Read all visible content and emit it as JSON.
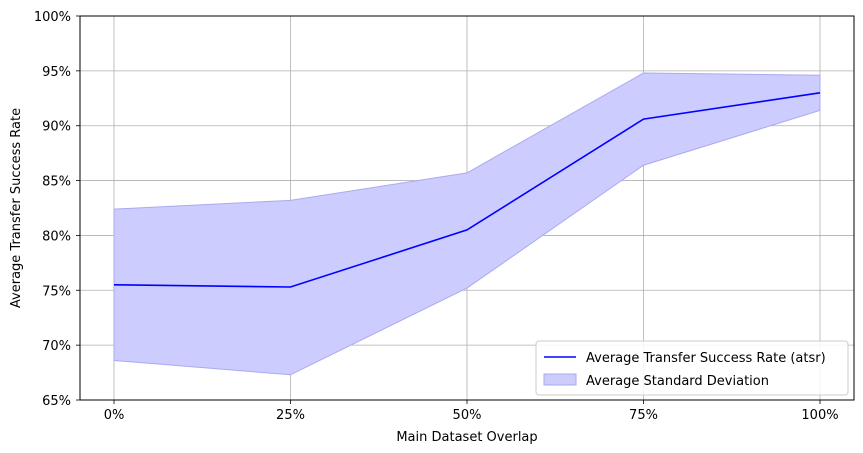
{
  "chart_data": {
    "type": "line",
    "title": "",
    "xlabel": "Main Dataset Overlap",
    "ylabel": "Average Transfer Success Rate",
    "x": [
      0,
      25,
      50,
      75,
      100
    ],
    "xtick_labels": [
      "0%",
      "25%",
      "50%",
      "75%",
      "100%"
    ],
    "ylim": [
      65,
      100
    ],
    "yticks": [
      65,
      70,
      75,
      80,
      85,
      90,
      95,
      100
    ],
    "ytick_labels": [
      "65%",
      "70%",
      "75%",
      "80%",
      "85%",
      "90%",
      "95%",
      "100%"
    ],
    "grid": true,
    "legend_position": "lower-right",
    "series": [
      {
        "name": "Average Transfer Success Rate (atsr)",
        "kind": "line",
        "color": "#0000ff",
        "values": [
          75.5,
          75.3,
          80.5,
          90.6,
          93.0
        ]
      },
      {
        "name": "Average Standard Deviation",
        "kind": "band",
        "color": "#ccccff",
        "upper": [
          82.4,
          83.2,
          85.7,
          94.8,
          94.6
        ],
        "lower": [
          68.6,
          67.3,
          75.2,
          86.4,
          91.4
        ]
      }
    ]
  }
}
